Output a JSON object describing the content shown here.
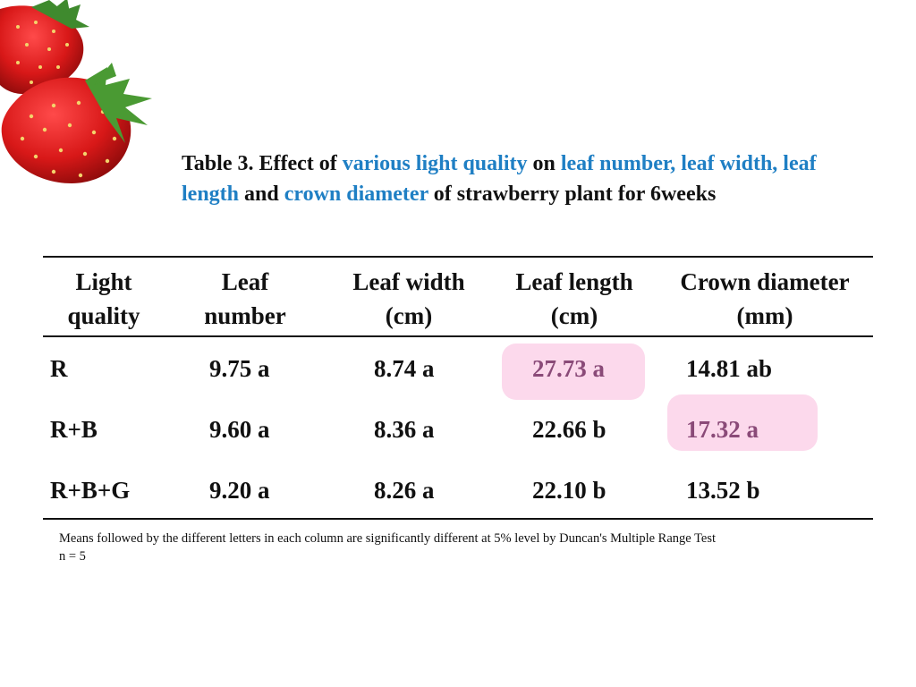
{
  "title": {
    "p1": "Table 3. Effect of ",
    "h1": "various light quality",
    "p2": " on ",
    "h2": "leaf number, leaf width, leaf length",
    "p3": " and ",
    "h3": "crown diameter",
    "p4": " of strawberry plant for 6weeks"
  },
  "colors": {
    "highlight_text": "#1f7fc4",
    "cell_highlight": "#fcd9ec",
    "highlight_value": "#8a4a78"
  },
  "decoration": {
    "icon": "strawberry-icon"
  },
  "table": {
    "headers": [
      [
        "Light",
        "quality"
      ],
      [
        "Leaf",
        "number"
      ],
      [
        "Leaf width",
        "(cm)"
      ],
      [
        "Leaf length",
        "(cm)"
      ],
      [
        "Crown diameter",
        "(mm)"
      ]
    ],
    "rows": [
      {
        "light": "R",
        "leaf_number": "9.75 a",
        "leaf_width": "8.74 a",
        "leaf_length": "27.73 a",
        "crown_diameter": "14.81 ab"
      },
      {
        "light": "R+B",
        "leaf_number": "9.60 a",
        "leaf_width": "8.36 a",
        "leaf_length": "22.66 b",
        "crown_diameter": "17.32 a"
      },
      {
        "light": "R+B+G",
        "leaf_number": "9.20 a",
        "leaf_width": "8.26 a",
        "leaf_length": "22.10 b",
        "crown_diameter": "13.52 b"
      }
    ]
  },
  "footnote": {
    "line1": "Means followed by the different letters in each column are significantly different  at 5% level by Duncan's Multiple Range Test",
    "line2": "n = 5"
  }
}
